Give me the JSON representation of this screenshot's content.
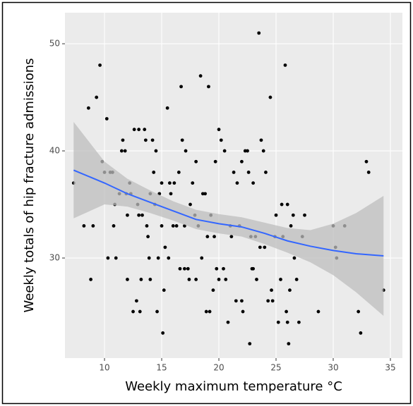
{
  "chart_data": {
    "type": "scatter",
    "xlabel": "Weekly maximum temperature °C",
    "ylabel": "Weekly totals of hip fracture admissions",
    "xlim": [
      6.54,
      36.05
    ],
    "ylim": [
      20.66,
      52.9
    ],
    "xticks": [
      10,
      15,
      20,
      25,
      30,
      35
    ],
    "yticks": [
      30,
      40,
      50
    ],
    "grid": true,
    "color": "#000000",
    "x": [
      7.3,
      8.2,
      8.6,
      8.8,
      9,
      9.3,
      9.6,
      9.8,
      10,
      10.2,
      10.3,
      10.5,
      10.7,
      10.8,
      10.9,
      11,
      11.3,
      11.5,
      11.6,
      11.8,
      11.9,
      12,
      12,
      12.2,
      12.3,
      12.5,
      12.6,
      12.8,
      12.9,
      13,
      13,
      13.1,
      13.2,
      13.3,
      13.5,
      13.6,
      13.7,
      13.8,
      13.9,
      14,
      14,
      14.2,
      14.3,
      14.4,
      14.5,
      14.6,
      14.7,
      14.8,
      15,
      15,
      15.1,
      15.2,
      15.3,
      15.5,
      15.6,
      15.7,
      15.8,
      16,
      16.1,
      16.3,
      16.5,
      16.6,
      16.7,
      16.8,
      17,
      17,
      17.1,
      17.3,
      17.4,
      17.5,
      17.7,
      17.9,
      18,
      18,
      18.2,
      18.4,
      18.5,
      18.6,
      18.8,
      18.9,
      19,
      19.1,
      19.2,
      19.3,
      19.5,
      19.6,
      19.7,
      19.8,
      20,
      20,
      20.2,
      20.4,
      20.5,
      20.6,
      20.8,
      21,
      21.1,
      21.3,
      21.5,
      21.6,
      21.8,
      22,
      22,
      22.1,
      22.3,
      22.5,
      22.6,
      22.7,
      22.8,
      22.9,
      23,
      23,
      23.2,
      23.3,
      23.5,
      23.6,
      23.7,
      23.9,
      24,
      24.1,
      24.3,
      24.5,
      24.6,
      24.7,
      24.9,
      25,
      25.2,
      25.4,
      25.5,
      25.6,
      25.8,
      25.9,
      26,
      26,
      26.1,
      26.2,
      26.3,
      26.5,
      26.6,
      26.8,
      27,
      27.3,
      27.5,
      28.7,
      30,
      30.2,
      30.3,
      31,
      32.2,
      32.4,
      32.9,
      33.1,
      34.4
    ],
    "values": [
      37,
      33,
      44,
      28,
      33,
      45,
      48,
      39,
      38,
      43,
      30,
      38,
      38,
      33,
      35,
      30,
      36,
      40,
      41,
      40,
      36,
      34,
      28,
      37,
      36,
      25,
      42,
      26,
      35,
      42,
      34,
      25,
      28,
      34,
      42,
      41,
      33,
      32,
      30,
      36,
      28,
      41,
      38,
      35,
      40,
      25,
      30,
      36,
      37,
      33,
      23,
      27,
      31,
      44,
      30,
      37,
      36,
      33,
      37,
      33,
      38,
      29,
      46,
      41,
      29,
      33,
      40,
      29,
      28,
      35,
      37,
      34,
      28,
      39,
      33,
      47,
      30,
      36,
      36,
      25,
      32,
      46,
      25,
      34,
      27,
      32,
      39,
      29,
      42,
      28,
      41,
      29,
      40,
      28,
      24,
      33,
      32,
      38,
      26,
      37,
      33,
      26,
      39,
      25,
      40,
      40,
      38,
      22,
      32,
      29,
      37,
      29,
      32,
      28,
      51,
      31,
      41,
      40,
      31,
      38,
      26,
      45,
      27,
      26,
      32,
      34,
      24,
      28,
      35,
      32,
      48,
      25,
      35,
      24,
      22,
      27,
      33,
      34,
      30,
      28,
      24,
      32,
      34,
      25,
      33,
      31,
      30,
      33,
      25,
      23,
      39,
      38,
      27
    ],
    "smooth": {
      "color": "#3366ff",
      "band_color": "#bdbdbd",
      "x": [
        7.3,
        10,
        12,
        14,
        16,
        18,
        20,
        22,
        24,
        26,
        28,
        30,
        32,
        34.4
      ],
      "values": [
        38.2,
        37,
        36,
        35.2,
        34.4,
        33.6,
        33.2,
        32.9,
        32.3,
        31.6,
        31.1,
        30.7,
        30.4,
        30.2
      ],
      "lower": [
        33.7,
        35,
        34.8,
        34.2,
        33.5,
        32.7,
        32.3,
        32,
        31.3,
        30.5,
        29.6,
        28.4,
        26.8,
        24.6
      ],
      "upper": [
        42.7,
        39,
        37.4,
        36.3,
        35.3,
        34.5,
        34.1,
        33.8,
        33.3,
        32.8,
        32.6,
        33.2,
        34.2,
        35.8
      ]
    }
  }
}
